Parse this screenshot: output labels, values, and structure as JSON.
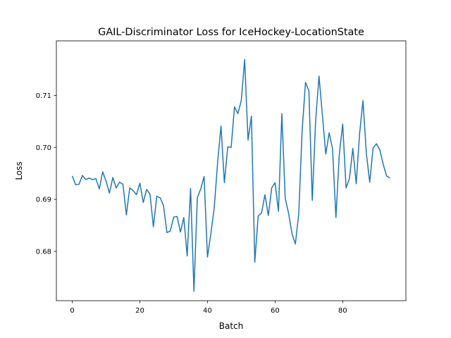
{
  "chart_data": {
    "type": "line",
    "title": "GAIL-Discriminator Loss for IceHockey-LocationState",
    "xlabel": "Batch",
    "ylabel": "Loss",
    "xlim": [
      -4.7,
      98.7
    ],
    "ylim": [
      0.6705,
      0.7205
    ],
    "xticks": [
      0,
      20,
      40,
      60,
      80
    ],
    "yticks": [
      0.68,
      0.69,
      0.7,
      0.71
    ],
    "ytick_labels": [
      "0.68",
      "0.69",
      "0.70",
      "0.71"
    ],
    "grid": false,
    "series": [
      {
        "color": "#1f77b4",
        "x": [
          0,
          1,
          2,
          3,
          4,
          5,
          6,
          7,
          8,
          9,
          10,
          11,
          12,
          13,
          14,
          15,
          16,
          17,
          18,
          19,
          20,
          21,
          22,
          23,
          24,
          25,
          26,
          27,
          28,
          29,
          30,
          31,
          32,
          33,
          34,
          35,
          36,
          37,
          38,
          39,
          40,
          41,
          42,
          43,
          44,
          45,
          46,
          47,
          48,
          49,
          50,
          51,
          52,
          53,
          54,
          55,
          56,
          57,
          58,
          59,
          60,
          61,
          62,
          63,
          64,
          65,
          66,
          67,
          68,
          69,
          70,
          71,
          72,
          73,
          74,
          75,
          76,
          77,
          78,
          79,
          80,
          81,
          82,
          83,
          84,
          85,
          86,
          87,
          88,
          89,
          90,
          91,
          92,
          93,
          94
        ],
        "values": [
          0.6945,
          0.6928,
          0.6929,
          0.6946,
          0.6938,
          0.6941,
          0.6938,
          0.694,
          0.692,
          0.6953,
          0.6935,
          0.6912,
          0.6942,
          0.6922,
          0.6933,
          0.6929,
          0.687,
          0.6922,
          0.6917,
          0.6909,
          0.6931,
          0.6894,
          0.6919,
          0.691,
          0.6847,
          0.6906,
          0.6903,
          0.6888,
          0.6836,
          0.6839,
          0.6866,
          0.6867,
          0.6837,
          0.6865,
          0.6791,
          0.6921,
          0.6723,
          0.6903,
          0.692,
          0.6944,
          0.6789,
          0.6834,
          0.6884,
          0.6971,
          0.7041,
          0.6932,
          0.7001,
          0.7,
          0.7078,
          0.7065,
          0.709,
          0.7169,
          0.7014,
          0.706,
          0.6779,
          0.6868,
          0.6874,
          0.6909,
          0.6869,
          0.6922,
          0.6932,
          0.6877,
          0.7065,
          0.6902,
          0.6873,
          0.6834,
          0.6814,
          0.6872,
          0.7032,
          0.7125,
          0.7109,
          0.6898,
          0.7052,
          0.7137,
          0.7062,
          0.6987,
          0.7028,
          0.6997,
          0.6865,
          0.6986,
          0.7045,
          0.6922,
          0.694,
          0.6998,
          0.693,
          0.7026,
          0.709,
          0.6988,
          0.6933,
          0.6999,
          0.7007,
          0.6995,
          0.6967,
          0.6945,
          0.6941
        ]
      }
    ]
  }
}
